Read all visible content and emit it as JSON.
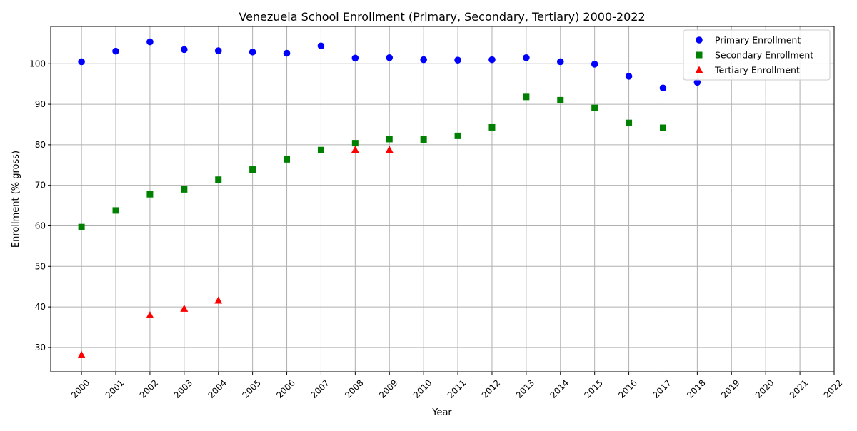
{
  "chart_data": {
    "type": "scatter",
    "title": "Venezuela School Enrollment (Primary, Secondary, Tertiary) 2000-2022",
    "xlabel": "Year",
    "ylabel": "Enrollment (% gross)",
    "x_ticks": [
      2000,
      2001,
      2002,
      2003,
      2004,
      2005,
      2006,
      2007,
      2008,
      2009,
      2010,
      2011,
      2012,
      2013,
      2014,
      2015,
      2016,
      2017,
      2018,
      2019,
      2020,
      2021,
      2022
    ],
    "y_ticks": [
      30,
      40,
      50,
      60,
      70,
      80,
      90,
      100
    ],
    "xlim": [
      1999.1,
      2022.0
    ],
    "ylim": [
      24.0,
      109.2
    ],
    "grid": true,
    "legend_position": "top-right",
    "series": [
      {
        "name": "Primary Enrollment",
        "color": "#0000ff",
        "marker": "circle",
        "points": [
          [
            2000,
            100.5
          ],
          [
            2001,
            103.1
          ],
          [
            2002,
            105.4
          ],
          [
            2003,
            103.5
          ],
          [
            2004,
            103.2
          ],
          [
            2005,
            102.9
          ],
          [
            2006,
            102.6
          ],
          [
            2007,
            104.4
          ],
          [
            2008,
            101.4
          ],
          [
            2009,
            101.5
          ],
          [
            2010,
            101.0
          ],
          [
            2011,
            100.9
          ],
          [
            2012,
            101.0
          ],
          [
            2013,
            101.5
          ],
          [
            2014,
            100.5
          ],
          [
            2015,
            99.9
          ],
          [
            2016,
            96.9
          ],
          [
            2017,
            94.0
          ],
          [
            2018,
            95.4
          ]
        ]
      },
      {
        "name": "Secondary Enrollment",
        "color": "#008000",
        "marker": "square",
        "points": [
          [
            2000,
            59.7
          ],
          [
            2001,
            63.8
          ],
          [
            2002,
            67.8
          ],
          [
            2003,
            69.0
          ],
          [
            2004,
            71.4
          ],
          [
            2005,
            73.9
          ],
          [
            2006,
            76.4
          ],
          [
            2007,
            78.7
          ],
          [
            2008,
            80.4
          ],
          [
            2009,
            81.4
          ],
          [
            2010,
            81.3
          ],
          [
            2011,
            82.2
          ],
          [
            2012,
            84.3
          ],
          [
            2013,
            91.8
          ],
          [
            2014,
            91.0
          ],
          [
            2015,
            89.1
          ],
          [
            2016,
            85.4
          ],
          [
            2017,
            84.2
          ]
        ]
      },
      {
        "name": "Tertiary Enrollment",
        "color": "#ff0000",
        "marker": "triangle",
        "points": [
          [
            2000,
            28.2
          ],
          [
            2002,
            38.0
          ],
          [
            2003,
            39.6
          ],
          [
            2004,
            41.6
          ],
          [
            2008,
            78.8
          ],
          [
            2009,
            78.8
          ]
        ]
      }
    ]
  }
}
